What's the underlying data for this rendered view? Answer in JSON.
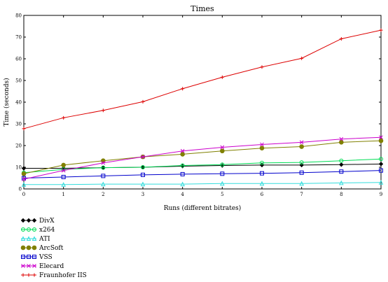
{
  "chart_data": {
    "type": "line",
    "title": "Times",
    "xlabel": "Runs (different bitrates)",
    "ylabel": "Time (seconds)",
    "xlim": [
      0,
      9
    ],
    "ylim": [
      0,
      80
    ],
    "x_ticks": [
      0,
      1,
      2,
      3,
      4,
      5,
      6,
      7,
      8,
      9
    ],
    "y_ticks": [
      0,
      10,
      20,
      30,
      40,
      50,
      60,
      70,
      80
    ],
    "grid": false,
    "legend_position": "below-left",
    "x": [
      0,
      1,
      2,
      3,
      4,
      5,
      6,
      7,
      8,
      9
    ],
    "series": [
      {
        "name": "DivX",
        "color": "#000000",
        "marker": "diamond",
        "values": [
          9.5,
          9.5,
          9.8,
          10.0,
          10.5,
          10.8,
          11.0,
          11.0,
          11.2,
          11.5
        ]
      },
      {
        "name": "x264",
        "color": "#00dd55",
        "marker": "circle-open",
        "values": [
          7.5,
          9.0,
          9.8,
          10.0,
          10.8,
          11.2,
          12.0,
          12.2,
          13.0,
          13.8
        ]
      },
      {
        "name": "ATI",
        "color": "#33dddd",
        "marker": "triangle-open",
        "values": [
          2.0,
          2.0,
          2.2,
          2.2,
          2.2,
          2.5,
          2.5,
          2.5,
          2.8,
          3.0
        ]
      },
      {
        "name": "ArcSoft",
        "color": "#808000",
        "marker": "circle-filled",
        "values": [
          7.0,
          11.0,
          13.0,
          14.8,
          16.0,
          17.5,
          18.8,
          19.5,
          21.5,
          22.2
        ]
      },
      {
        "name": "VSS",
        "color": "#0000cc",
        "marker": "square-open",
        "values": [
          5.0,
          5.5,
          6.0,
          6.5,
          6.8,
          7.0,
          7.2,
          7.5,
          8.0,
          8.5
        ]
      },
      {
        "name": "Elecard",
        "color": "#cc00cc",
        "marker": "x",
        "values": [
          4.5,
          8.5,
          12.0,
          14.8,
          17.5,
          19.2,
          20.5,
          21.5,
          23.0,
          23.8
        ]
      },
      {
        "name": "Fraunhofer IIS",
        "color": "#dd0000",
        "marker": "plus",
        "values": [
          27.8,
          32.8,
          36.2,
          40.2,
          46.2,
          51.5,
          56.2,
          60.2,
          69.2,
          73.2
        ]
      }
    ]
  }
}
